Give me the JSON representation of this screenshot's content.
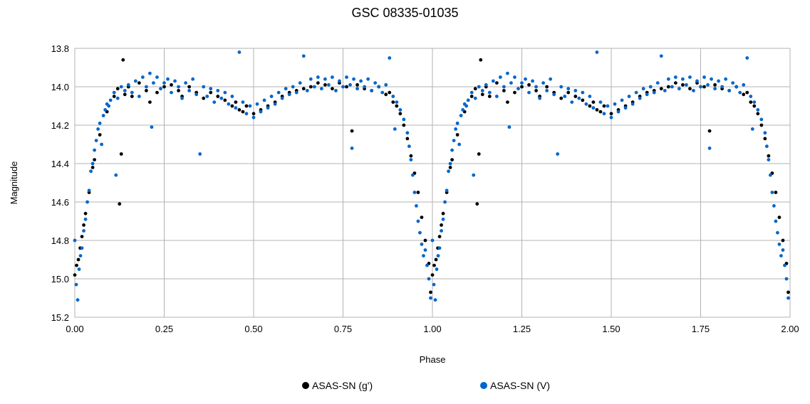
{
  "chart_data": {
    "type": "scatter",
    "title": "GSC 08335-01035",
    "xlabel": "Phase",
    "ylabel": "Magnitude",
    "xlim": [
      0.0,
      2.0
    ],
    "ylim": [
      13.8,
      15.2
    ],
    "y_inverted": true,
    "grid": true,
    "legend_position": "bottom",
    "x_ticks": [
      "0.00",
      "0.25",
      "0.50",
      "0.75",
      "1.00",
      "1.25",
      "1.50",
      "1.75",
      "2.00"
    ],
    "y_ticks": [
      "13.8",
      "14.0",
      "14.2",
      "14.4",
      "14.6",
      "14.8",
      "15.0",
      "15.2"
    ],
    "series": [
      {
        "name": "ASAS-SN (g')",
        "color": "#000000",
        "points": [
          [
            0.0,
            14.98
          ],
          [
            0.005,
            14.93
          ],
          [
            0.01,
            14.9
          ],
          [
            0.015,
            14.84
          ],
          [
            0.02,
            14.78
          ],
          [
            0.025,
            14.72
          ],
          [
            0.03,
            14.66
          ],
          [
            0.04,
            14.55
          ],
          [
            0.05,
            14.42
          ],
          [
            0.055,
            14.38
          ],
          [
            0.07,
            14.25
          ],
          [
            0.09,
            14.13
          ],
          [
            0.11,
            14.05
          ],
          [
            0.12,
            14.01
          ],
          [
            0.125,
            14.61
          ],
          [
            0.13,
            14.35
          ],
          [
            0.135,
            13.86
          ],
          [
            0.14,
            14.04
          ],
          [
            0.15,
            14.0
          ],
          [
            0.16,
            14.05
          ],
          [
            0.18,
            13.98
          ],
          [
            0.2,
            14.02
          ],
          [
            0.21,
            14.08
          ],
          [
            0.23,
            14.03
          ],
          [
            0.25,
            14.0
          ],
          [
            0.27,
            13.99
          ],
          [
            0.29,
            14.02
          ],
          [
            0.3,
            14.05
          ],
          [
            0.32,
            14.0
          ],
          [
            0.34,
            14.03
          ],
          [
            0.36,
            14.06
          ],
          [
            0.38,
            14.03
          ],
          [
            0.4,
            14.05
          ],
          [
            0.42,
            14.07
          ],
          [
            0.44,
            14.1
          ],
          [
            0.45,
            14.08
          ],
          [
            0.46,
            14.12
          ],
          [
            0.47,
            14.13
          ],
          [
            0.48,
            14.1
          ],
          [
            0.5,
            14.14
          ],
          [
            0.52,
            14.12
          ],
          [
            0.54,
            14.1
          ],
          [
            0.56,
            14.08
          ],
          [
            0.58,
            14.05
          ],
          [
            0.6,
            14.03
          ],
          [
            0.62,
            14.02
          ],
          [
            0.64,
            14.01
          ],
          [
            0.66,
            14.0
          ],
          [
            0.68,
            13.98
          ],
          [
            0.7,
            13.99
          ],
          [
            0.72,
            14.01
          ],
          [
            0.74,
            13.98
          ],
          [
            0.76,
            14.0
          ],
          [
            0.775,
            14.23
          ],
          [
            0.79,
            13.99
          ],
          [
            0.81,
            14.01
          ],
          [
            0.83,
            14.02
          ],
          [
            0.85,
            14.0
          ],
          [
            0.87,
            14.04
          ],
          [
            0.88,
            14.03
          ],
          [
            0.89,
            14.08
          ],
          [
            0.9,
            14.1
          ],
          [
            0.91,
            14.14
          ],
          [
            0.92,
            14.2
          ],
          [
            0.93,
            14.27
          ],
          [
            0.94,
            14.36
          ],
          [
            0.95,
            14.45
          ],
          [
            0.96,
            14.55
          ],
          [
            0.97,
            14.68
          ],
          [
            0.98,
            14.8
          ],
          [
            0.99,
            14.92
          ],
          [
            0.995,
            15.07
          ]
        ]
      },
      {
        "name": "ASAS-SN (V)",
        "color": "#0066cc",
        "points": [
          [
            0.0,
            14.8
          ],
          [
            0.004,
            15.03
          ],
          [
            0.008,
            15.11
          ],
          [
            0.012,
            14.95
          ],
          [
            0.016,
            14.88
          ],
          [
            0.02,
            14.84
          ],
          [
            0.025,
            14.75
          ],
          [
            0.03,
            14.69
          ],
          [
            0.035,
            14.6
          ],
          [
            0.04,
            14.54
          ],
          [
            0.045,
            14.44
          ],
          [
            0.05,
            14.4
          ],
          [
            0.055,
            14.33
          ],
          [
            0.06,
            14.28
          ],
          [
            0.065,
            14.22
          ],
          [
            0.07,
            14.19
          ],
          [
            0.075,
            14.3
          ],
          [
            0.08,
            14.15
          ],
          [
            0.085,
            14.12
          ],
          [
            0.09,
            14.09
          ],
          [
            0.095,
            14.1
          ],
          [
            0.1,
            14.07
          ],
          [
            0.11,
            14.03
          ],
          [
            0.115,
            14.46
          ],
          [
            0.12,
            14.06
          ],
          [
            0.13,
            14.0
          ],
          [
            0.14,
            14.02
          ],
          [
            0.15,
            13.99
          ],
          [
            0.16,
            14.03
          ],
          [
            0.17,
            13.97
          ],
          [
            0.18,
            14.05
          ],
          [
            0.19,
            13.95
          ],
          [
            0.2,
            14.0
          ],
          [
            0.21,
            13.93
          ],
          [
            0.215,
            14.21
          ],
          [
            0.22,
            13.98
          ],
          [
            0.23,
            13.95
          ],
          [
            0.24,
            14.01
          ],
          [
            0.25,
            13.98
          ],
          [
            0.26,
            13.96
          ],
          [
            0.27,
            14.03
          ],
          [
            0.28,
            13.97
          ],
          [
            0.29,
            14.0
          ],
          [
            0.3,
            14.06
          ],
          [
            0.31,
            13.98
          ],
          [
            0.32,
            14.02
          ],
          [
            0.33,
            13.96
          ],
          [
            0.34,
            14.04
          ],
          [
            0.35,
            14.35
          ],
          [
            0.36,
            14.0
          ],
          [
            0.37,
            14.05
          ],
          [
            0.38,
            14.01
          ],
          [
            0.39,
            14.08
          ],
          [
            0.4,
            14.02
          ],
          [
            0.41,
            14.06
          ],
          [
            0.42,
            14.03
          ],
          [
            0.43,
            14.09
          ],
          [
            0.44,
            14.05
          ],
          [
            0.45,
            14.11
          ],
          [
            0.46,
            13.82
          ],
          [
            0.47,
            14.08
          ],
          [
            0.48,
            14.14
          ],
          [
            0.49,
            14.1
          ],
          [
            0.5,
            14.16
          ],
          [
            0.51,
            14.09
          ],
          [
            0.52,
            14.13
          ],
          [
            0.53,
            14.07
          ],
          [
            0.54,
            14.11
          ],
          [
            0.55,
            14.05
          ],
          [
            0.56,
            14.09
          ],
          [
            0.57,
            14.03
          ],
          [
            0.58,
            14.06
          ],
          [
            0.59,
            14.01
          ],
          [
            0.6,
            14.04
          ],
          [
            0.61,
            14.0
          ],
          [
            0.62,
            14.03
          ],
          [
            0.63,
            13.98
          ],
          [
            0.64,
            13.84
          ],
          [
            0.65,
            14.02
          ],
          [
            0.66,
            13.96
          ],
          [
            0.67,
            14.0
          ],
          [
            0.68,
            13.95
          ],
          [
            0.69,
            14.01
          ],
          [
            0.7,
            13.96
          ],
          [
            0.71,
            13.99
          ],
          [
            0.72,
            13.95
          ],
          [
            0.73,
            14.02
          ],
          [
            0.74,
            13.97
          ],
          [
            0.75,
            14.0
          ],
          [
            0.76,
            13.95
          ],
          [
            0.77,
            13.99
          ],
          [
            0.775,
            14.32
          ],
          [
            0.78,
            13.96
          ],
          [
            0.79,
            14.01
          ],
          [
            0.8,
            13.97
          ],
          [
            0.81,
            14.0
          ],
          [
            0.82,
            13.96
          ],
          [
            0.83,
            14.02
          ],
          [
            0.84,
            13.98
          ],
          [
            0.85,
            14.0
          ],
          [
            0.86,
            14.03
          ],
          [
            0.87,
            13.99
          ],
          [
            0.88,
            13.85
          ],
          [
            0.89,
            14.05
          ],
          [
            0.895,
            14.22
          ],
          [
            0.9,
            14.08
          ],
          [
            0.91,
            14.12
          ],
          [
            0.92,
            14.17
          ],
          [
            0.93,
            14.24
          ],
          [
            0.935,
            14.31
          ],
          [
            0.94,
            14.38
          ],
          [
            0.945,
            14.46
          ],
          [
            0.95,
            14.55
          ],
          [
            0.955,
            14.62
          ],
          [
            0.96,
            14.7
          ],
          [
            0.965,
            14.76
          ],
          [
            0.97,
            14.82
          ],
          [
            0.975,
            14.88
          ],
          [
            0.98,
            14.85
          ],
          [
            0.985,
            14.93
          ],
          [
            0.99,
            15.0
          ],
          [
            0.995,
            15.1
          ]
        ]
      }
    ]
  }
}
